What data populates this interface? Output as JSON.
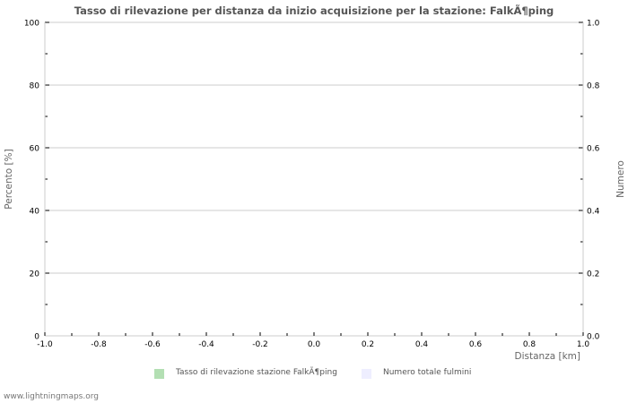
{
  "chart_data": {
    "type": "bar",
    "title": "Tasso di rilevazione per distanza da inizio acquisizione per la stazione: FalkÃ¶ping",
    "xlabel": "Distanza   [km]",
    "ylabel_left": "Percento   [%]",
    "ylabel_right": "Numero",
    "xlim": [
      -1.0,
      1.0
    ],
    "ylim_left": [
      0,
      100
    ],
    "ylim_right": [
      0.0,
      1.0
    ],
    "x_ticks": [
      "-1.0",
      "-0.8",
      "-0.6",
      "-0.4",
      "-0.2",
      "0.0",
      "0.2",
      "0.4",
      "0.6",
      "0.8",
      "1.0"
    ],
    "y_left_ticks": [
      "0",
      "20",
      "40",
      "60",
      "80",
      "100"
    ],
    "y_right_ticks": [
      "0.0",
      "0.2",
      "0.4",
      "0.6",
      "0.8",
      "1.0"
    ],
    "grid": true,
    "series": [
      {
        "name": "Tasso di rilevazione stazione FalkÃ¶ping",
        "color": "#b3dfb3",
        "values": []
      },
      {
        "name": "Numero totale fulmini",
        "color": "#eeeeff",
        "values": []
      }
    ],
    "legend_position": "bottom"
  },
  "legend": {
    "items": [
      {
        "label": "Tasso di rilevazione stazione FalkÃ¶ping",
        "color": "#b3dfb3"
      },
      {
        "label": "Numero totale fulmini",
        "color": "#eeeeff"
      }
    ]
  },
  "footer": {
    "text": "www.lightningmaps.org"
  }
}
